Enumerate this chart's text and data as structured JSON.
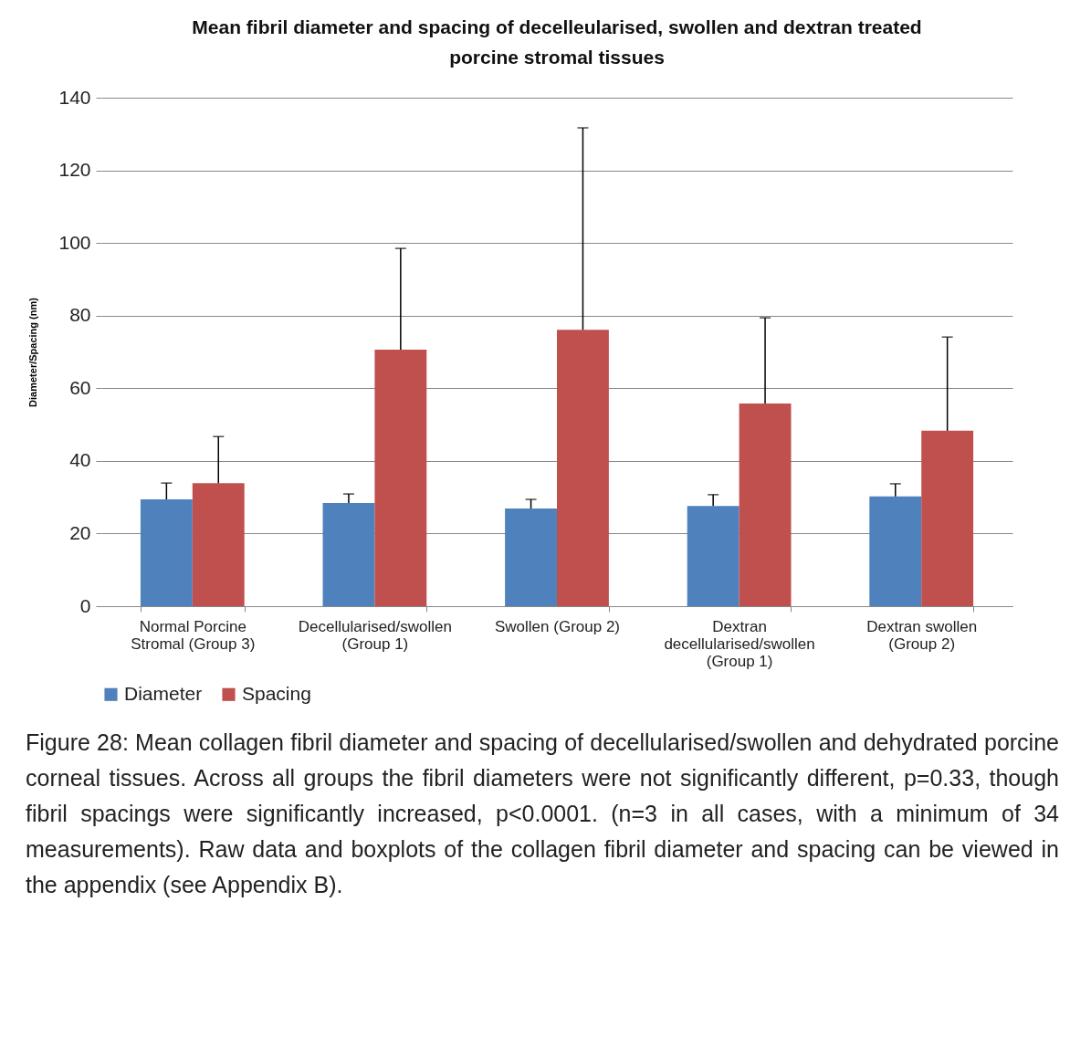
{
  "chart_data": {
    "type": "bar",
    "title": "Mean fibril diameter and spacing of decelleularised, swollen and dextran treated porcine stromal tissues",
    "ylabel": "Diameter/Spacing (nm)",
    "categories": [
      "Normal Porcine Stromal (Group 3)",
      "Decellularised/swollen (Group 1)",
      "Swollen (Group 2)",
      "Dextran decellularised/swollen (Group 1)",
      "Dextran swollen (Group 2)"
    ],
    "series": [
      {
        "name": "Diameter",
        "color": "#4f81bd",
        "values": [
          29.4,
          28.4,
          26.9,
          27.6,
          30.2
        ],
        "errors": [
          4.5,
          2.5,
          2.5,
          3.1,
          3.5
        ]
      },
      {
        "name": "Spacing",
        "color": "#c0504d",
        "values": [
          33.9,
          70.6,
          76.1,
          55.8,
          48.3
        ],
        "errors": [
          12.8,
          27.9,
          55.6,
          23.6,
          25.8
        ]
      }
    ],
    "ylim": [
      0,
      140
    ],
    "yticks": [
      0,
      20,
      40,
      60,
      80,
      100,
      120,
      140
    ],
    "grid": "y",
    "legend": "bottom",
    "annotations": [
      "Figure 28: Mean collagen fibril diameter and spacing of decellularised/swollen and dehydrated porcine corneal tissues. Across all groups the fibril diameters were not significantly different, p=0.33, though fibril spacings were significantly increased, p<0.0001. (n=3 in all cases, with a minimum of 34 measurements). Raw data and boxplots of the collagen fibril diameter and spacing can be viewed in the appendix (see Appendix B)."
    ]
  }
}
